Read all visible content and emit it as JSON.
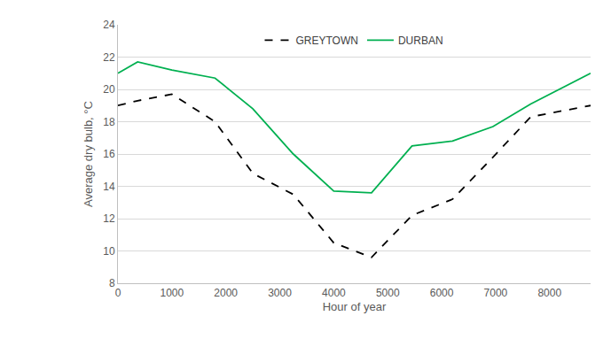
{
  "chart_data": {
    "type": "line",
    "x_label": "Hour of year",
    "y_label": "Average dry bulb, °C",
    "x": [
      0,
      365,
      1000,
      1800,
      2500,
      3250,
      4000,
      4700,
      5450,
      6200,
      6950,
      7650,
      8760
    ],
    "series": [
      {
        "name": "GREYTOWN",
        "color": "#000000",
        "line_style": "dashed",
        "values": [
          19.0,
          19.3,
          19.7,
          18.0,
          14.8,
          13.5,
          10.5,
          9.6,
          12.2,
          13.2,
          15.8,
          18.3,
          19.0
        ]
      },
      {
        "name": "DURBAN",
        "color": "#00B050",
        "line_style": "solid",
        "values": [
          21.0,
          21.7,
          21.2,
          20.7,
          18.8,
          16.0,
          13.7,
          13.6,
          16.5,
          16.8,
          17.7,
          19.1,
          21.0
        ]
      }
    ],
    "xlim": [
      0,
      8760
    ],
    "xticks": [
      0,
      1000,
      2000,
      3000,
      4000,
      5000,
      6000,
      7000,
      8000
    ],
    "ylim": [
      8,
      24
    ],
    "yticks": [
      8,
      10,
      12,
      14,
      16,
      18,
      20,
      22,
      24
    ],
    "grid": true,
    "legend": "top"
  }
}
